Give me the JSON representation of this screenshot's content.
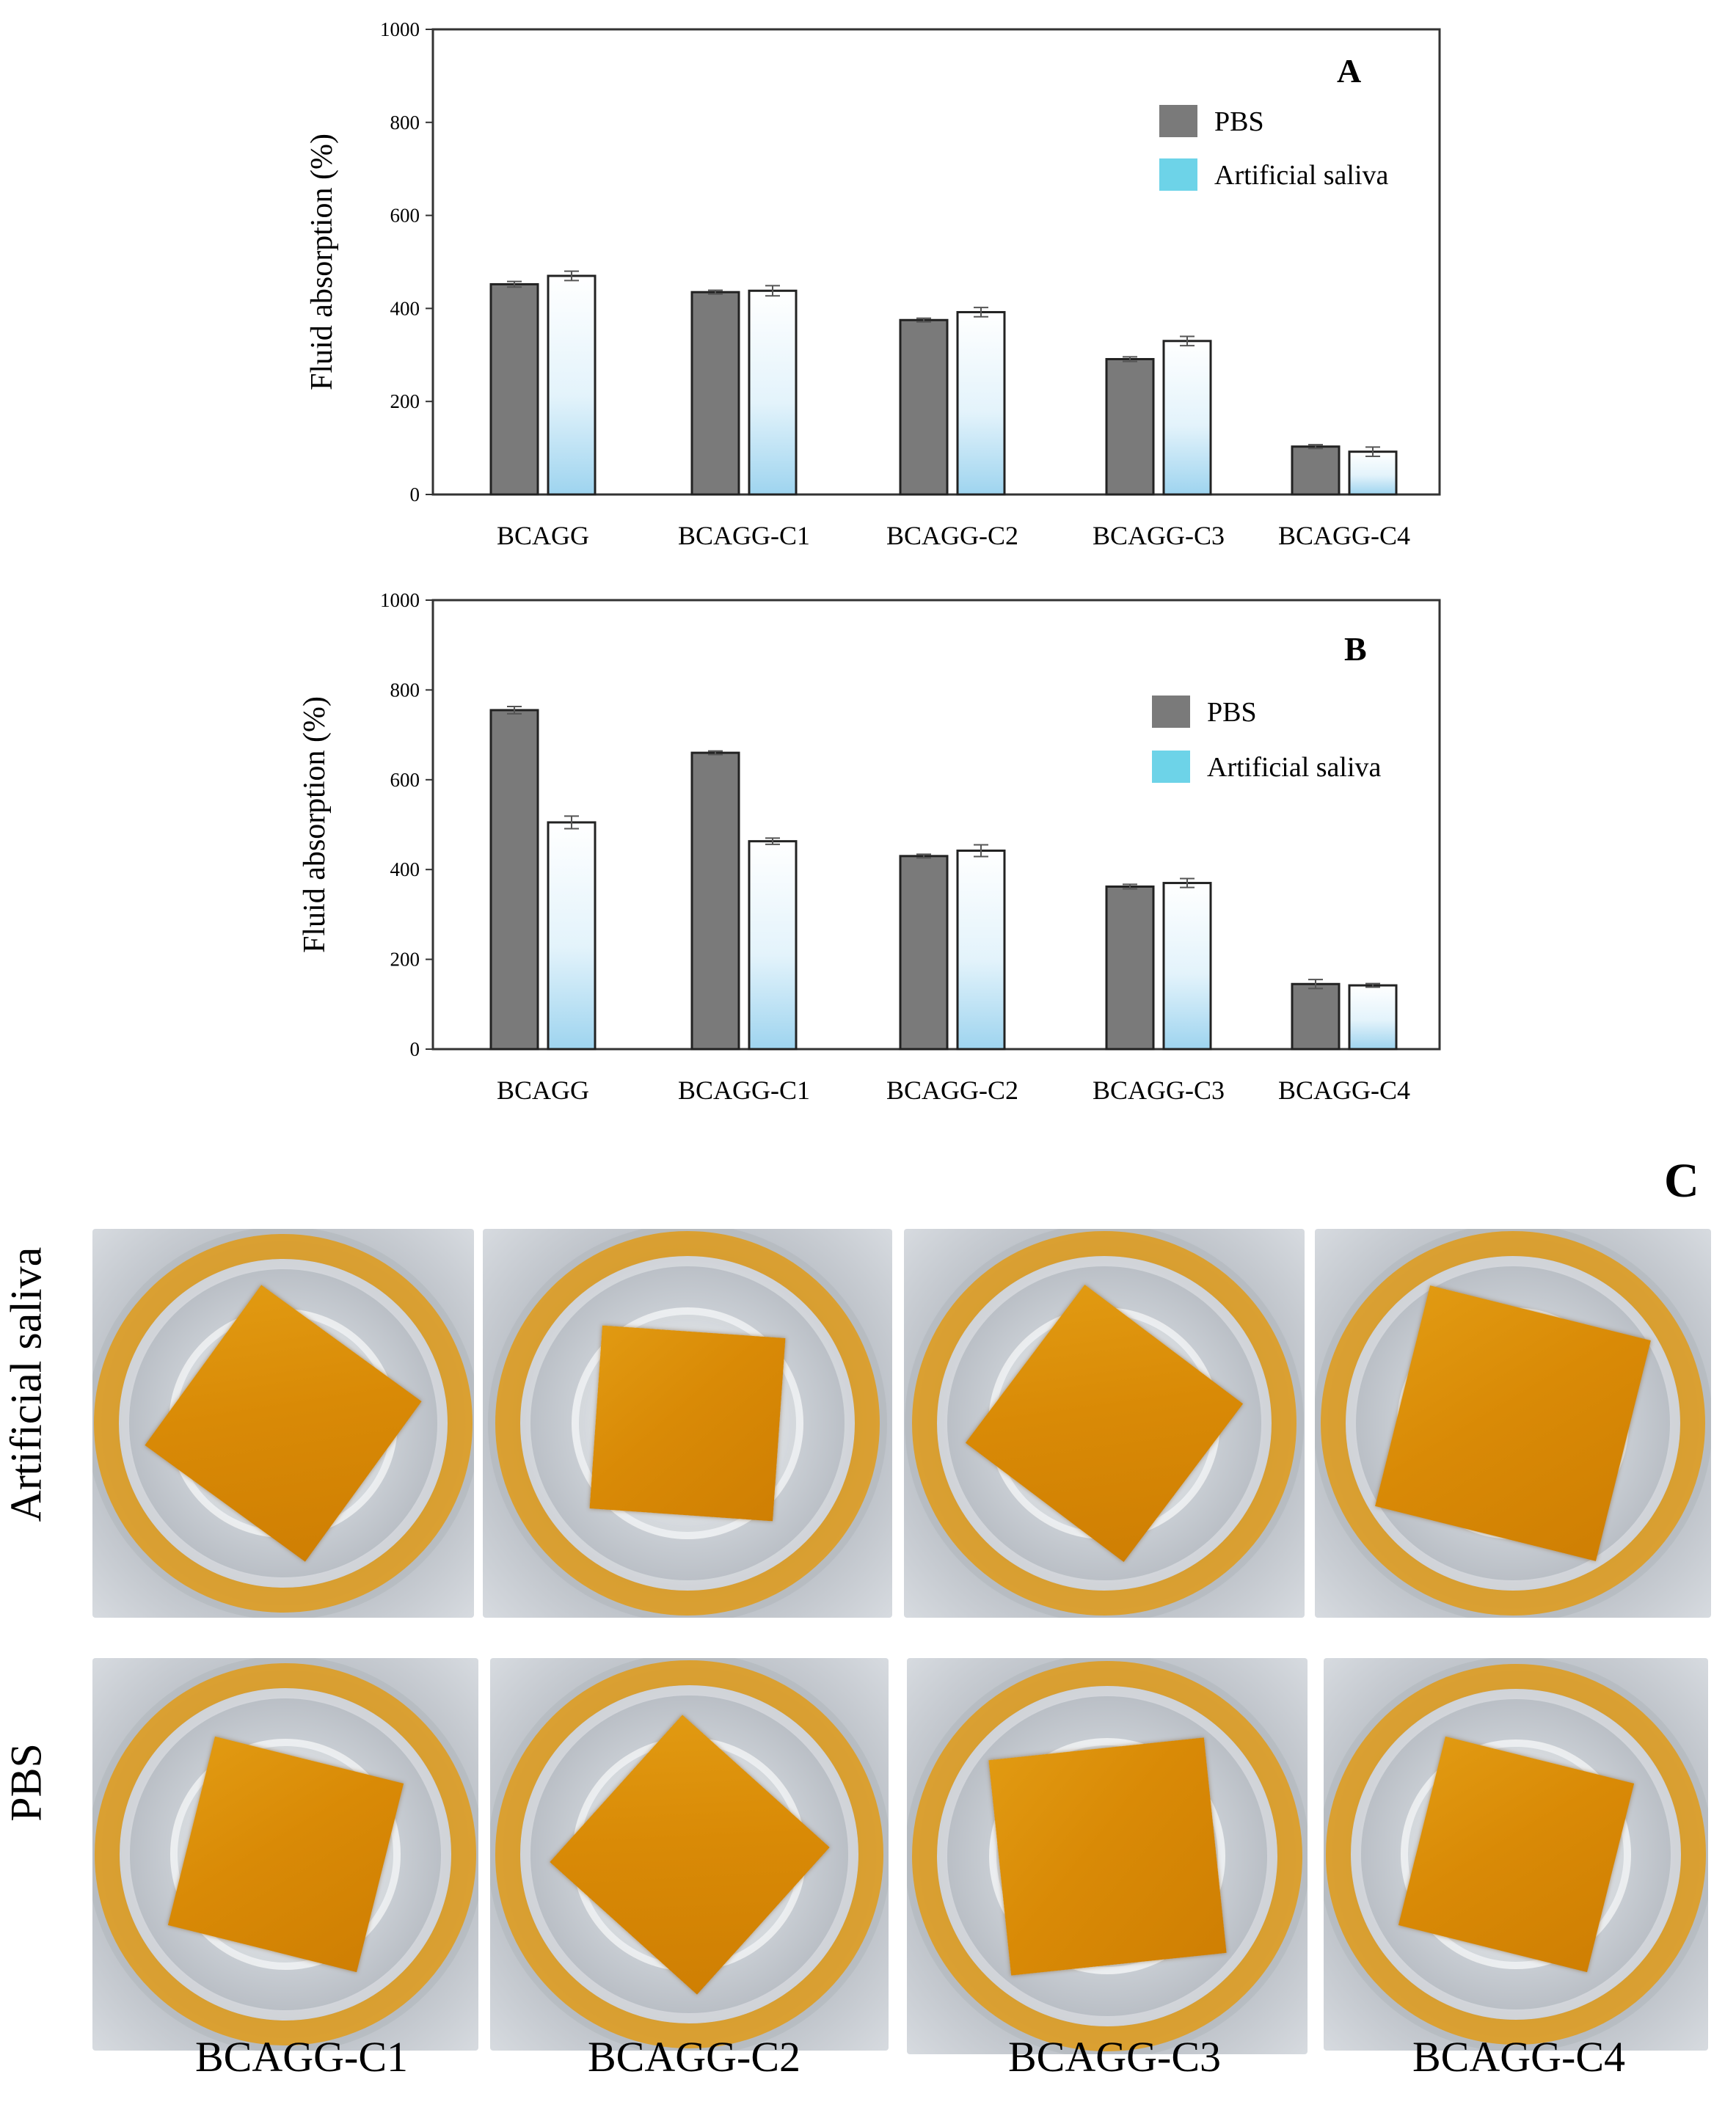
{
  "chart_data": [
    {
      "type": "bar",
      "panel_label": "A",
      "title": "",
      "xlabel": "",
      "ylabel": "Fluid absorption (%)",
      "ylim": [
        0,
        1000
      ],
      "yticks": [
        0,
        200,
        400,
        600,
        800,
        1000
      ],
      "categories": [
        "BCAGG",
        "BCAGG-C1",
        "BCAGG-C2",
        "BCAGG-C3",
        "BCAGG-C4"
      ],
      "series": [
        {
          "name": "PBS",
          "color": "#7a7a7a",
          "values": [
            452,
            435,
            375,
            291,
            103
          ],
          "errors": [
            6,
            4,
            4,
            5,
            4
          ]
        },
        {
          "name": "Artificial saliva",
          "color": "#6dd3e8",
          "values": [
            470,
            438,
            392,
            330,
            92
          ],
          "errors": [
            10,
            11,
            10,
            10,
            10
          ]
        }
      ],
      "legend_position": "top-right"
    },
    {
      "type": "bar",
      "panel_label": "B",
      "title": "",
      "xlabel": "",
      "ylabel": "Fluid absorption (%)",
      "ylim": [
        0,
        1000
      ],
      "yticks": [
        0,
        200,
        400,
        600,
        800,
        1000
      ],
      "categories": [
        "BCAGG",
        "BCAGG-C1",
        "BCAGG-C2",
        "BCAGG-C3",
        "BCAGG-C4"
      ],
      "series": [
        {
          "name": "PBS",
          "color": "#7a7a7a",
          "values": [
            755,
            660,
            430,
            362,
            145
          ],
          "errors": [
            8,
            4,
            4,
            5,
            10
          ]
        },
        {
          "name": "Artificial saliva",
          "color": "#6dd3e8",
          "values": [
            505,
            463,
            442,
            370,
            142
          ],
          "errors": [
            14,
            7,
            13,
            10,
            4
          ]
        }
      ],
      "legend_position": "top-right"
    }
  ],
  "photo_panel": {
    "panel_label": "C",
    "row_labels": [
      "Artificial saliva",
      "PBS"
    ],
    "column_labels": [
      "BCAGG-C1",
      "BCAGG-C2",
      "BCAGG-C3",
      "BCAGG-C4"
    ]
  }
}
